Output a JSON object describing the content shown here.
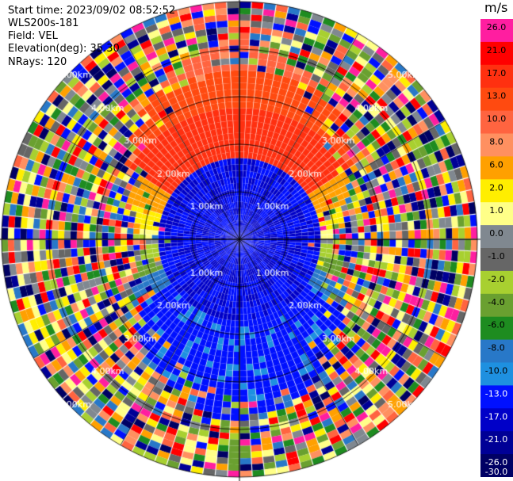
{
  "header": {
    "start_time": "Start time: 2023/09/02 08:52:52",
    "site": "WLS200s-181",
    "field": "Field: VEL",
    "elevation": "Elevation(deg): 35.30",
    "nrays": "NRays: 120"
  },
  "chart_data": {
    "type": "heatmap",
    "projection": "polar-ppi",
    "nrays": 120,
    "range_unit": "km",
    "max_range_km": 5.0,
    "range_rings_km": [
      1.0,
      2.0,
      3.0,
      4.0,
      5.0
    ],
    "ring_labels": [
      "1.00km",
      "2.00km",
      "3.00km",
      "4.00km",
      "5.00km"
    ],
    "colorbar": {
      "unit": "m/s",
      "ticks": [
        "26.0",
        "21.0",
        "17.0",
        "13.0",
        "10.0",
        "8.0",
        "6.0",
        "2.0",
        "1.0",
        "0.0",
        "-1.0",
        "-2.0",
        "-4.0",
        "-6.0",
        "-8.0",
        "-10.0",
        "-13.0",
        "-17.0",
        "-21.0",
        "-26.0",
        "-30.0"
      ],
      "colors": [
        "#ff1ea0",
        "#ff0000",
        "#ff3010",
        "#ff4a10",
        "#ff6440",
        "#ff9060",
        "#ffa000",
        "#ffee00",
        "#ffff88",
        "#808890",
        "#666666",
        "#a8d030",
        "#6aa030",
        "#1e8c20",
        "#2878c8",
        "#1e90e0",
        "#0010ff",
        "#0000c8",
        "#000096",
        "#000064"
      ]
    }
  }
}
